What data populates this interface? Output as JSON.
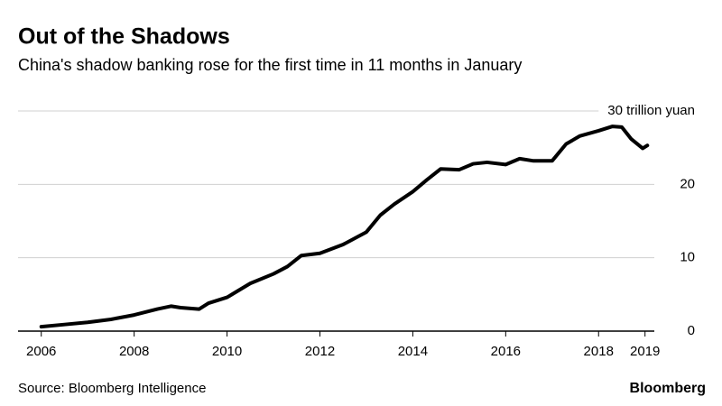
{
  "chart_data": {
    "type": "line",
    "title": "Out of the Shadows",
    "subtitle": "China's shadow banking rose for the first time in 11 months in January",
    "source": "Source: Bloomberg Intelligence",
    "credit": "Bloomberg",
    "x": [
      2006.0,
      2006.5,
      2007.0,
      2007.5,
      2008.0,
      2008.5,
      2008.8,
      2009.0,
      2009.4,
      2009.6,
      2010.0,
      2010.5,
      2011.0,
      2011.3,
      2011.6,
      2012.0,
      2012.5,
      2013.0,
      2013.3,
      2013.6,
      2014.0,
      2014.3,
      2014.6,
      2015.0,
      2015.3,
      2015.6,
      2016.0,
      2016.3,
      2016.6,
      2017.0,
      2017.3,
      2017.6,
      2018.0,
      2018.3,
      2018.5,
      2018.7,
      2018.95,
      2019.05
    ],
    "series": [
      {
        "color": "#000000",
        "values": [
          0.6,
          0.9,
          1.2,
          1.6,
          2.2,
          3.0,
          3.4,
          3.2,
          3.0,
          3.8,
          4.6,
          6.5,
          7.8,
          8.8,
          10.3,
          10.6,
          11.8,
          13.5,
          15.8,
          17.3,
          19.0,
          20.6,
          22.1,
          22.0,
          22.8,
          23.0,
          22.7,
          23.5,
          23.2,
          23.2,
          25.5,
          26.6,
          27.3,
          27.9,
          27.8,
          26.2,
          24.9,
          25.3
        ]
      }
    ],
    "xlim": [
      2005.5,
      2019.2
    ],
    "xticks": [
      2006,
      2008,
      2010,
      2012,
      2014,
      2016,
      2018,
      2019
    ],
    "ylim": [
      0,
      30
    ],
    "yticks": [
      0,
      10,
      20,
      {
        "value": 30,
        "label": "30 trillion yuan"
      }
    ],
    "grid": true
  }
}
